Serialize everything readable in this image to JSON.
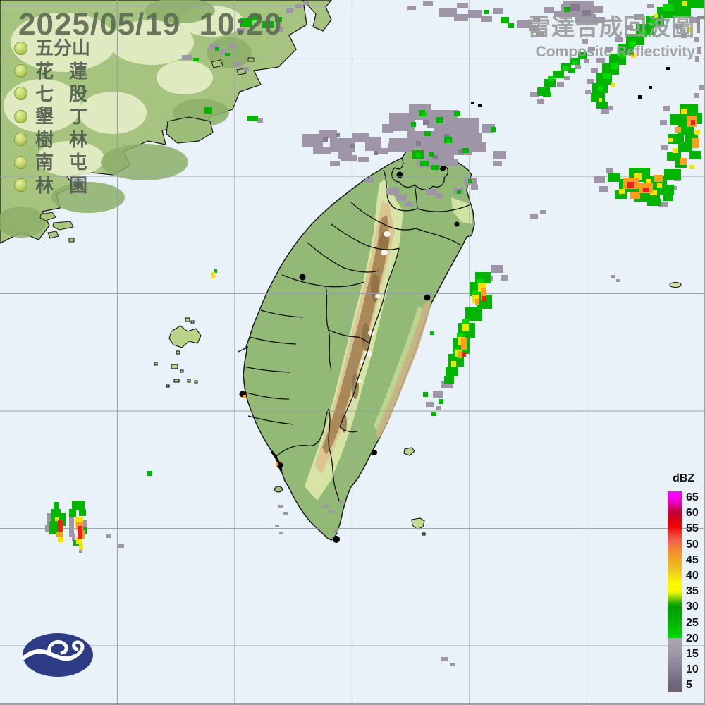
{
  "header": {
    "timestamp": "2025/05/19  10:20",
    "title_zh": "雷達合成回波圖",
    "title_en": "Composite Reflectivity"
  },
  "stations": [
    "五分山",
    "花蓮",
    "七股",
    "墾丁",
    "樹林",
    "南屯",
    "林園"
  ],
  "legend": {
    "unit": "dBZ",
    "ticks": [
      "65",
      "60",
      "55",
      "50",
      "45",
      "40",
      "35",
      "30",
      "25",
      "20",
      "15",
      "10",
      "5"
    ],
    "tick_spacing_px": 22.2,
    "gradient": [
      [
        "0%",
        "#ff00ff"
      ],
      [
        "3%",
        "#fa00f2"
      ],
      [
        "5.5%",
        "#e800c0"
      ],
      [
        "8%",
        "#d4006c"
      ],
      [
        "10.5%",
        "#c20030"
      ],
      [
        "13.5%",
        "#d60018"
      ],
      [
        "17.5%",
        "#f60000"
      ],
      [
        "21%",
        "#f23830"
      ],
      [
        "24.5%",
        "#f2614c"
      ],
      [
        "28%",
        "#f48038"
      ],
      [
        "31.5%",
        "#f59a2c"
      ],
      [
        "35%",
        "#f0ae22"
      ],
      [
        "38.5%",
        "#edc426"
      ],
      [
        "42%",
        "#f2dc12"
      ],
      [
        "45.5%",
        "#fef800"
      ],
      [
        "49.5%",
        "#f8fc00"
      ],
      [
        "51.5%",
        "#c0ea00"
      ],
      [
        "53.5%",
        "#74cc00"
      ],
      [
        "55.5%",
        "#28b000"
      ],
      [
        "57.5%",
        "#009e00"
      ],
      [
        "64.5%",
        "#00b200"
      ],
      [
        "71%",
        "#00d000"
      ],
      [
        "72.8%",
        "#00dc00"
      ],
      [
        "73.2%",
        "#aaa7af"
      ],
      [
        "80%",
        "#a09aa9"
      ],
      [
        "88%",
        "#898195"
      ],
      [
        "96%",
        "#716779"
      ],
      [
        "100%",
        "#6c6275"
      ]
    ]
  },
  "colors": {
    "sea": "#e9f2f9",
    "grid_line": "#98a0a6",
    "coastline": "#1a1a1a",
    "lowland_green": "#93b976",
    "mountain_tan": "#dcc493",
    "mountain_brown": "#ab8858",
    "echo_gray": "#9e96a6",
    "echo_green": "#00b400",
    "echo_yellow": "#f0e400",
    "echo_orange": "#f5a020",
    "echo_red": "#ee2020",
    "logo_blue": "#2e3c85",
    "timestamp_text": "#5f6d55",
    "title_text": "#9a9d9a"
  }
}
